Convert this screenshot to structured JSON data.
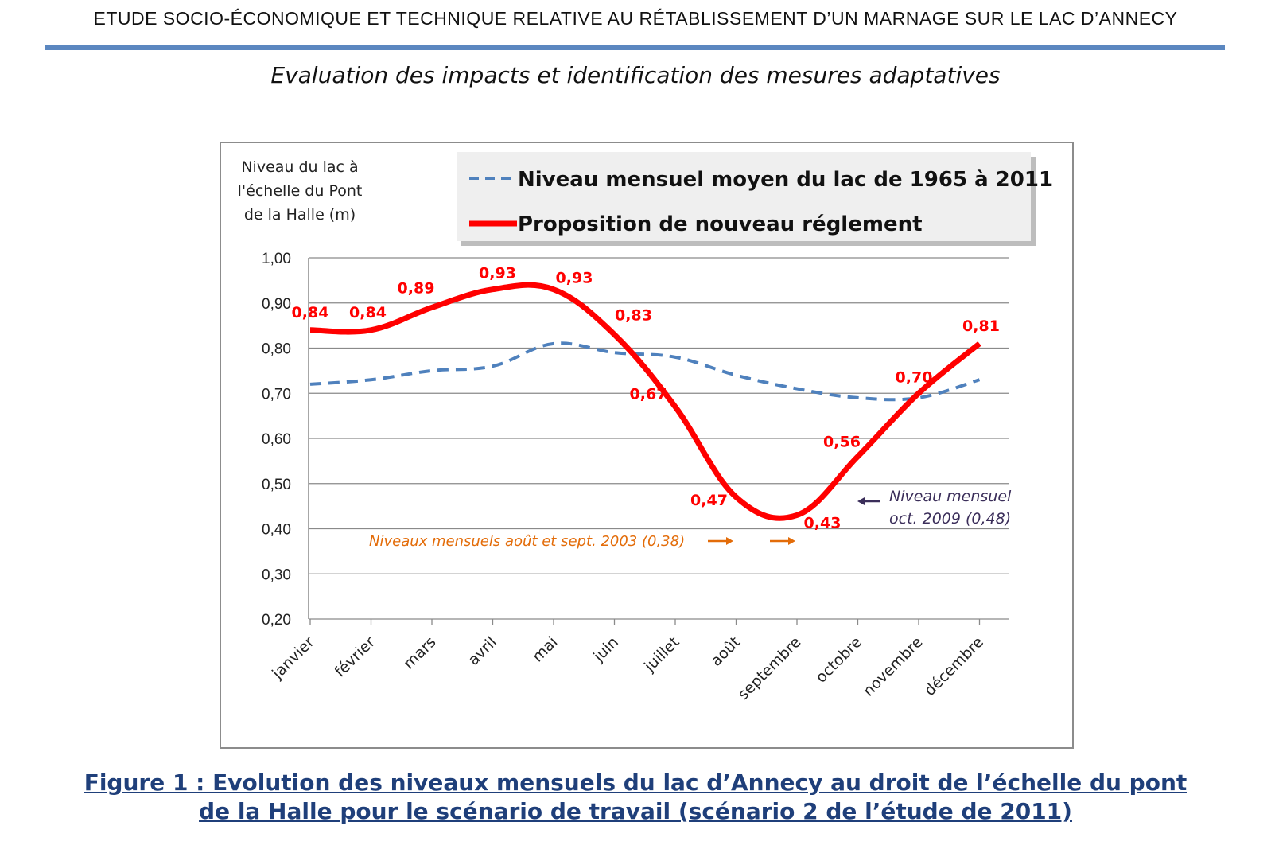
{
  "header": {
    "title": "ETUDE SOCIO-ÉCONOMIQUE ET TECHNIQUE RELATIVE AU RÉTABLISSEMENT D’UN MARNAGE SUR LE LAC D’ANNECY",
    "rule_color": "#5b87c0"
  },
  "subtitle": "Evaluation des impacts et identification des mesures adaptatives",
  "chart_data": {
    "type": "line",
    "ylabel": "Niveau du lac à l'échelle du Pont de la Halle (m)",
    "ylabel_lines": [
      "Niveau du lac à",
      "l'échelle du Pont",
      "de la Halle (m)"
    ],
    "ylim": [
      0.2,
      1.0
    ],
    "yticks": [
      "0,20",
      "0,30",
      "0,40",
      "0,50",
      "0,60",
      "0,70",
      "0,80",
      "0,90",
      "1,00"
    ],
    "categories": [
      "janvier",
      "février",
      "mars",
      "avril",
      "mai",
      "juin",
      "juillet",
      "août",
      "septembre",
      "octobre",
      "novembre",
      "décembre"
    ],
    "grid": true,
    "legend_position": "top",
    "series": [
      {
        "name": "Niveau mensuel moyen du lac de 1965 à 2011",
        "style": "dashed",
        "color": "#4f81bd",
        "values": [
          0.72,
          0.73,
          0.75,
          0.76,
          0.81,
          0.79,
          0.78,
          0.74,
          0.71,
          0.69,
          0.69,
          0.73
        ]
      },
      {
        "name": "Proposition de nouveau réglement",
        "style": "solid",
        "color": "#ff0000",
        "values": [
          0.84,
          0.84,
          0.89,
          0.93,
          0.93,
          0.83,
          0.67,
          0.47,
          0.43,
          0.56,
          0.7,
          0.81
        ],
        "data_labels": [
          "0,84",
          "0,84",
          "0,89",
          "0,93",
          "0,93",
          "0,83",
          "0,67",
          "0,47",
          "0,43",
          "0,56",
          "0,70",
          "0,81"
        ]
      }
    ],
    "annotations": [
      {
        "id": "aug-sept-2003",
        "text": "Niveaux mensuels août et sept. 2003 (0,38)",
        "color": "#e36c09",
        "value": 0.38
      },
      {
        "id": "oct-2009",
        "lines": [
          "Niveau mensuel",
          "oct. 2009 (0,48)"
        ],
        "color": "#3b2e5a",
        "value": 0.48
      }
    ]
  },
  "caption": {
    "line1": "Figure 1 : Evolution des niveaux mensuels du lac d’Annecy au droit de l’échelle du pont",
    "line2": "de la Halle pour le scénario de travail (scénario 2 de l’étude de 2011)"
  }
}
